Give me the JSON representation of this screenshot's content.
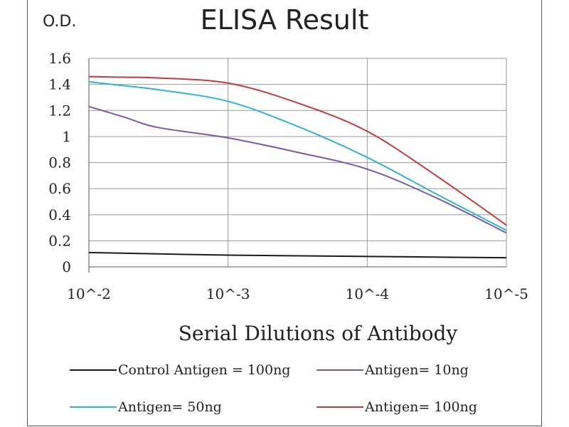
{
  "chart_data": {
    "type": "line",
    "title": "ELISA Result",
    "ylabel": "O.D.",
    "xlabel": "Serial Dilutions  of Antibody",
    "x_ticks": [
      "10^-2",
      "10^-3",
      "10^-4",
      "10^-5"
    ],
    "x": [
      0.01,
      0.001,
      0.0001,
      1e-05
    ],
    "y_ticks": [
      "0",
      "0.2",
      "0.4",
      "0.6",
      "0.8",
      "1",
      "1.2",
      "1.4",
      "1.6"
    ],
    "ylim": [
      0,
      1.6
    ],
    "grid": true,
    "legend_position": "bottom",
    "series": [
      {
        "name": "Control Antigen = 100ng",
        "color": "#1a1a1a",
        "x": [
          0.01,
          0.001,
          0.0001,
          1e-05
        ],
        "values": [
          0.11,
          0.09,
          0.08,
          0.07
        ]
      },
      {
        "name": "Antigen= 10ng",
        "color": "#7b5aa6",
        "x": [
          0.01,
          0.0056,
          0.0032,
          0.001,
          0.00032,
          0.0001,
          3.2e-05,
          1e-05
        ],
        "values": [
          1.23,
          1.15,
          1.07,
          0.99,
          0.88,
          0.75,
          0.53,
          0.26
        ]
      },
      {
        "name": "Antigen= 50ng",
        "color": "#2fb4d6",
        "x": [
          0.01,
          0.0056,
          0.0032,
          0.001,
          0.00032,
          0.0001,
          3.2e-05,
          1e-05
        ],
        "values": [
          1.42,
          1.39,
          1.36,
          1.27,
          1.08,
          0.84,
          0.56,
          0.28
        ]
      },
      {
        "name": "Antigen= 100ng",
        "color": "#c8393a",
        "x": [
          0.01,
          0.0056,
          0.0032,
          0.001,
          0.00032,
          0.0001,
          3.2e-05,
          1e-05
        ],
        "values": [
          1.46,
          1.455,
          1.45,
          1.41,
          1.26,
          1.04,
          0.7,
          0.32
        ]
      }
    ]
  }
}
